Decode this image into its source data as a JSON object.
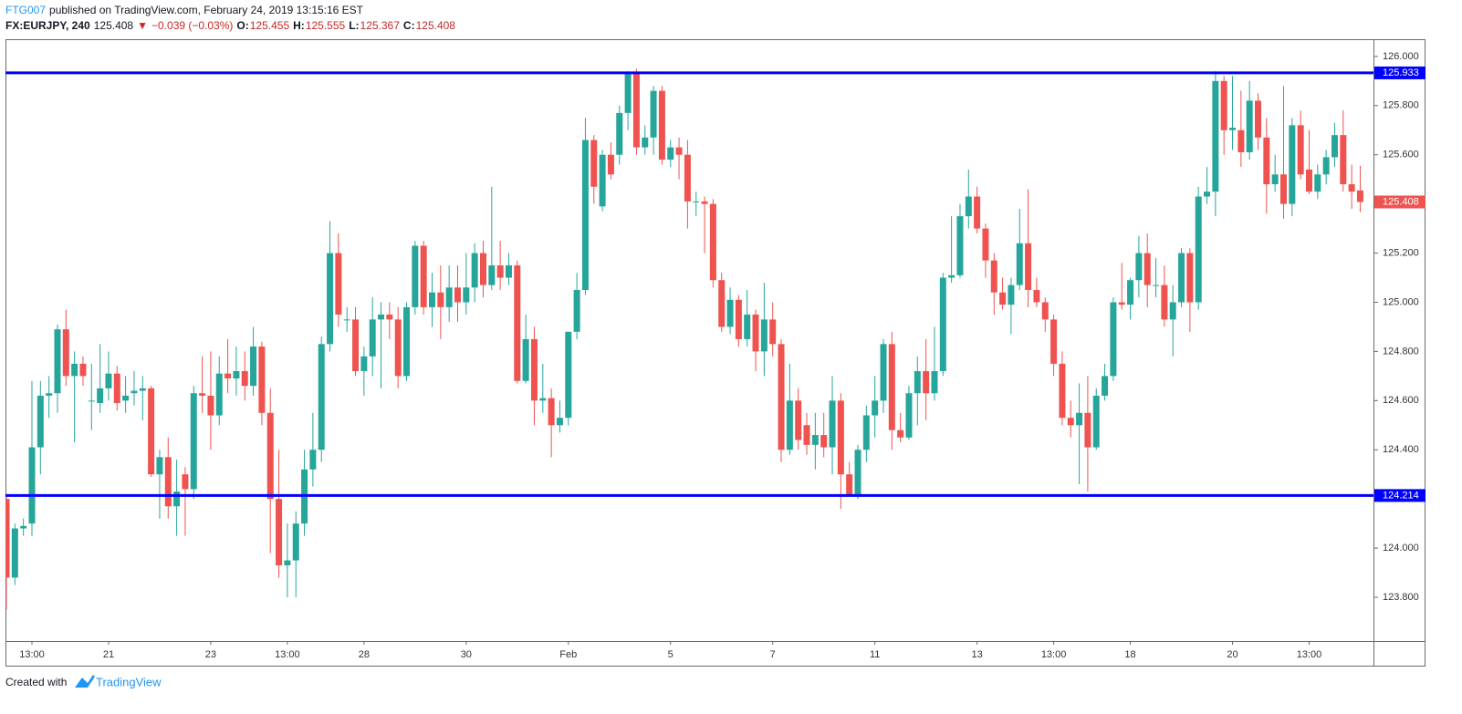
{
  "header": {
    "author": "FTG007",
    "published": "published on TradingView.com, February 24, 2019 13:15:16 EST",
    "symbol": "FX:EURJPY, 240",
    "arrow": "▼",
    "change": "−0.039 (−0.03%)",
    "o_label": "O:",
    "h_label": "H:",
    "l_label": "L:",
    "c_label": "C:"
  },
  "footer": {
    "created": "Created with",
    "brand": "TradingView"
  },
  "chart_data": {
    "type": "candlestick",
    "up_color": "#26a69a",
    "down_color": "#ef5350",
    "level_color": "#0000ff",
    "ylim": [
      123.622,
      126.07
    ],
    "yticks": [
      {
        "value": 123.8,
        "label": "123.800"
      },
      {
        "value": 124,
        "label": "124.000"
      },
      {
        "value": 124.2,
        "label": "124.200"
      },
      {
        "value": 124.4,
        "label": "124.400"
      },
      {
        "value": 124.6,
        "label": "124.600"
      },
      {
        "value": 124.8,
        "label": "124.800"
      },
      {
        "value": 125,
        "label": "125.000"
      },
      {
        "value": 125.2,
        "label": "125.200"
      },
      {
        "value": 125.4,
        "label": "125.400"
      },
      {
        "value": 125.6,
        "label": "125.600"
      },
      {
        "value": 125.8,
        "label": "125.800"
      },
      {
        "value": 126,
        "label": "126.000"
      }
    ],
    "levels": [
      125.933,
      124.214
    ],
    "categories": [
      null,
      null,
      null,
      "13:00",
      null,
      null,
      null,
      null,
      null,
      null,
      null,
      null,
      "21",
      null,
      null,
      null,
      null,
      null,
      null,
      null,
      null,
      null,
      null,
      null,
      "23",
      null,
      null,
      null,
      null,
      null,
      null,
      null,
      null,
      "13:00",
      null,
      null,
      null,
      null,
      null,
      null,
      null,
      null,
      "28",
      null,
      null,
      null,
      null,
      null,
      null,
      null,
      null,
      null,
      null,
      null,
      "30",
      null,
      null,
      null,
      null,
      null,
      null,
      null,
      null,
      null,
      null,
      null,
      "Feb",
      null,
      null,
      null,
      null,
      null,
      null,
      null,
      null,
      null,
      null,
      null,
      "5",
      null,
      null,
      null,
      null,
      null,
      null,
      null,
      null,
      null,
      null,
      null,
      "7",
      null,
      null,
      null,
      null,
      null,
      null,
      null,
      null,
      null,
      null,
      null,
      "11",
      null,
      null,
      null,
      null,
      null,
      null,
      null,
      null,
      null,
      null,
      null,
      "13",
      null,
      null,
      null,
      null,
      null,
      null,
      null,
      null,
      "13:00",
      null,
      null,
      null,
      null,
      null,
      null,
      null,
      null,
      "18",
      null,
      null,
      null,
      null,
      null,
      null,
      null,
      null,
      null,
      null,
      null,
      "20",
      null,
      null,
      null,
      null,
      null,
      null,
      null,
      null,
      "13:00",
      null,
      null,
      null,
      null,
      null,
      null
    ],
    "open": [
      124.2,
      123.88,
      124.08,
      124.1,
      124.41,
      124.62,
      124.63,
      124.89,
      124.7,
      124.75,
      124.6,
      124.59,
      124.65,
      124.71,
      124.6,
      124.63,
      124.64,
      124.65,
      124.3,
      124.37,
      124.17,
      124.3,
      124.24,
      124.63,
      124.62,
      124.54,
      124.71,
      124.69,
      124.72,
      124.66,
      124.82,
      124.55,
      124.2,
      123.93,
      123.95,
      124.1,
      124.32,
      124.4,
      124.83,
      125.2,
      124.93,
      124.93,
      124.72,
      124.78,
      124.93,
      124.95,
      124.93,
      124.7,
      124.98,
      125.23,
      124.98,
      125.04,
      124.98,
      125.06,
      125.0,
      125.06,
      125.2,
      125.07,
      125.15,
      125.1,
      125.15,
      124.68,
      124.85,
      124.6,
      124.61,
      124.5,
      124.53,
      124.88,
      125.05,
      125.66,
      125.39,
      125.6,
      125.6,
      125.77,
      125.93,
      125.63,
      125.67,
      125.86,
      125.58,
      125.63,
      125.6,
      125.41,
      125.41,
      125.4,
      125.09,
      124.9,
      125.01,
      124.85,
      124.95,
      124.8,
      124.93,
      124.83,
      124.4,
      124.6,
      124.5,
      124.42,
      124.46,
      124.41,
      124.6,
      124.3,
      124.21,
      124.4,
      124.54,
      124.6,
      124.83,
      124.48,
      124.45,
      124.63,
      124.72,
      124.63,
      124.72,
      125.1,
      125.11,
      125.35,
      125.43,
      125.3,
      125.17,
      125.04,
      124.99,
      125.07,
      125.24,
      125.05,
      125.0,
      124.93,
      124.75,
      124.53,
      124.5,
      124.55,
      124.41,
      124.62,
      124.7,
      125.0,
      124.99,
      125.09,
      125.2,
      125.07,
      125.07,
      124.93,
      125.0,
      125.2,
      125.0,
      125.43,
      125.45,
      125.9,
      125.7,
      125.7,
      125.61,
      125.82,
      125.67,
      125.48,
      125.52,
      125.4,
      125.72,
      125.54,
      125.45,
      125.52,
      125.59,
      125.68,
      125.48,
      125.455
    ],
    "high": [
      124.22,
      124.1,
      124.12,
      124.68,
      124.68,
      124.7,
      124.91,
      124.97,
      124.8,
      124.78,
      124.75,
      124.83,
      124.8,
      124.74,
      124.7,
      124.72,
      124.7,
      124.66,
      124.4,
      124.45,
      124.36,
      124.33,
      124.66,
      124.78,
      124.8,
      124.78,
      124.85,
      124.82,
      124.8,
      124.9,
      124.84,
      124.65,
      124.4,
      124.1,
      124.15,
      124.4,
      124.55,
      124.86,
      125.33,
      125.28,
      124.98,
      124.98,
      124.82,
      125.02,
      125.0,
      125.0,
      124.98,
      125.0,
      125.25,
      125.25,
      125.12,
      125.15,
      125.15,
      125.15,
      125.2,
      125.24,
      125.25,
      125.47,
      125.25,
      125.2,
      125.17,
      124.95,
      124.9,
      124.75,
      124.65,
      124.6,
      124.88,
      125.12,
      125.75,
      125.68,
      125.62,
      125.65,
      125.8,
      125.94,
      125.95,
      125.72,
      125.88,
      125.88,
      125.66,
      125.67,
      125.66,
      125.45,
      125.43,
      125.42,
      125.12,
      125.06,
      125.03,
      125.05,
      124.97,
      125.08,
      125.0,
      124.85,
      124.75,
      124.65,
      124.55,
      124.55,
      124.55,
      124.7,
      124.63,
      124.35,
      124.42,
      124.58,
      124.7,
      124.85,
      124.88,
      124.55,
      124.66,
      124.78,
      124.85,
      124.9,
      125.12,
      125.35,
      125.4,
      125.54,
      125.47,
      125.32,
      125.2,
      125.1,
      125.1,
      125.38,
      125.46,
      125.1,
      125.02,
      124.95,
      124.8,
      124.6,
      124.67,
      124.7,
      124.65,
      124.75,
      125.02,
      125.16,
      125.1,
      125.27,
      125.28,
      125.18,
      125.15,
      125.07,
      125.22,
      125.22,
      125.47,
      125.55,
      125.94,
      125.92,
      125.92,
      125.86,
      125.9,
      125.85,
      125.75,
      125.6,
      125.88,
      125.75,
      125.78,
      125.7,
      125.56,
      125.62,
      125.73,
      125.78,
      125.56,
      125.555
    ],
    "low": [
      123.75,
      123.85,
      124.05,
      124.05,
      124.3,
      124.53,
      124.55,
      124.66,
      124.43,
      124.66,
      124.48,
      124.55,
      124.6,
      124.56,
      124.55,
      124.58,
      124.52,
      124.29,
      124.12,
      124.12,
      124.05,
      124.05,
      124.2,
      124.55,
      124.4,
      124.5,
      124.63,
      124.62,
      124.6,
      124.62,
      124.5,
      123.98,
      123.88,
      123.8,
      123.8,
      124.05,
      124.25,
      124.35,
      124.8,
      124.9,
      124.88,
      124.7,
      124.62,
      124.7,
      124.65,
      124.85,
      124.65,
      124.68,
      124.95,
      124.95,
      124.9,
      124.85,
      124.92,
      124.92,
      124.95,
      125.0,
      125.02,
      125.05,
      125.05,
      125.07,
      124.67,
      124.67,
      124.5,
      124.55,
      124.37,
      124.47,
      124.5,
      124.85,
      125.03,
      125.4,
      125.37,
      125.5,
      125.56,
      125.7,
      125.6,
      125.6,
      125.6,
      125.56,
      125.55,
      125.5,
      125.3,
      125.35,
      125.2,
      125.06,
      124.88,
      124.87,
      124.82,
      124.82,
      124.72,
      124.7,
      124.78,
      124.35,
      124.38,
      124.4,
      124.38,
      124.32,
      124.37,
      124.3,
      124.16,
      124.21,
      124.2,
      124.35,
      124.45,
      124.55,
      124.4,
      124.43,
      124.44,
      124.5,
      124.52,
      124.6,
      124.7,
      125.08,
      125.1,
      125.3,
      125.28,
      125.1,
      124.95,
      124.97,
      124.87,
      125.05,
      124.98,
      124.98,
      124.88,
      124.7,
      124.5,
      124.45,
      124.26,
      124.23,
      124.4,
      124.6,
      124.68,
      124.97,
      124.93,
      125.02,
      124.98,
      125.02,
      124.9,
      124.78,
      124.98,
      124.88,
      124.97,
      125.4,
      125.35,
      125.6,
      125.62,
      125.55,
      125.58,
      125.62,
      125.36,
      125.45,
      125.34,
      125.35,
      125.5,
      125.44,
      125.42,
      125.48,
      125.55,
      125.45,
      125.38,
      125.367
    ],
    "close": [
      123.88,
      124.08,
      124.09,
      124.41,
      124.62,
      124.63,
      124.89,
      124.7,
      124.75,
      124.7,
      124.6,
      124.65,
      124.71,
      124.59,
      124.62,
      124.64,
      124.65,
      124.3,
      124.37,
      124.17,
      124.23,
      124.24,
      124.63,
      124.62,
      124.54,
      124.71,
      124.69,
      124.72,
      124.66,
      124.82,
      124.55,
      124.2,
      123.93,
      123.95,
      124.1,
      124.32,
      124.4,
      124.83,
      125.2,
      124.95,
      124.93,
      124.72,
      124.78,
      124.93,
      124.95,
      124.93,
      124.7,
      124.98,
      125.23,
      124.98,
      125.04,
      124.98,
      125.06,
      125.0,
      125.06,
      125.2,
      125.07,
      125.15,
      125.1,
      125.15,
      124.68,
      124.85,
      124.6,
      124.61,
      124.5,
      124.53,
      124.88,
      125.05,
      125.66,
      125.47,
      125.6,
      125.52,
      125.77,
      125.93,
      125.63,
      125.67,
      125.86,
      125.58,
      125.63,
      125.6,
      125.41,
      125.41,
      125.4,
      125.09,
      124.9,
      125.01,
      124.85,
      124.95,
      124.8,
      124.93,
      124.83,
      124.4,
      124.6,
      124.44,
      124.42,
      124.46,
      124.41,
      124.6,
      124.3,
      124.21,
      124.4,
      124.54,
      124.6,
      124.83,
      124.48,
      124.45,
      124.63,
      124.72,
      124.63,
      124.72,
      125.1,
      125.11,
      125.35,
      125.43,
      125.3,
      125.17,
      125.04,
      124.99,
      125.07,
      125.24,
      125.05,
      125.0,
      124.93,
      124.75,
      124.53,
      124.5,
      124.55,
      124.41,
      124.62,
      124.7,
      125.0,
      124.99,
      125.09,
      125.2,
      125.07,
      125.07,
      124.93,
      125.0,
      125.2,
      125.0,
      125.43,
      125.45,
      125.9,
      125.7,
      125.71,
      125.61,
      125.82,
      125.67,
      125.48,
      125.52,
      125.4,
      125.72,
      125.52,
      125.45,
      125.52,
      125.59,
      125.68,
      125.48,
      125.45,
      125.408
    ]
  }
}
